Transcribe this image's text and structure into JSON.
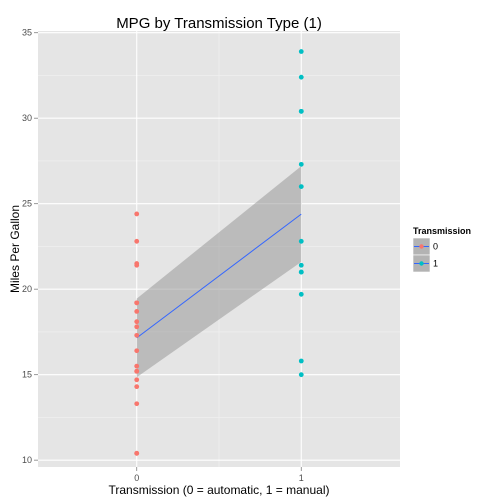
{
  "chart_data": {
    "type": "scatter",
    "title": "MPG by Transmission Type (1)",
    "xlabel": "Transmission (0 = automatic, 1 = manual)",
    "ylabel": "Miles Per Gallon",
    "xlim": [
      -0.6,
      1.6
    ],
    "ylim": [
      9.6,
      35.1
    ],
    "x_ticks": [
      0,
      1
    ],
    "y_ticks": [
      10,
      15,
      20,
      25,
      30,
      35
    ],
    "grid": true,
    "legend": {
      "title": "Transmission",
      "position": "right",
      "entries": [
        {
          "label": "0",
          "color": "#f8766d"
        },
        {
          "label": "1",
          "color": "#00bfc4"
        }
      ]
    },
    "series": [
      {
        "name": "0",
        "color": "#f8766d",
        "x": [
          0,
          0,
          0,
          0,
          0,
          0,
          0,
          0,
          0,
          0,
          0,
          0,
          0,
          0,
          0,
          0,
          0,
          0,
          0
        ],
        "y": [
          24.4,
          22.8,
          21.5,
          21.4,
          19.2,
          19.2,
          18.7,
          18.1,
          17.8,
          17.3,
          16.4,
          15.5,
          15.2,
          15.2,
          14.7,
          14.3,
          13.3,
          10.4,
          10.4
        ]
      },
      {
        "name": "1",
        "color": "#00bfc4",
        "x": [
          1,
          1,
          1,
          1,
          1,
          1,
          1,
          1,
          1,
          1,
          1,
          1,
          1
        ],
        "y": [
          33.9,
          32.4,
          30.4,
          30.4,
          27.3,
          26.0,
          22.8,
          21.4,
          21.0,
          21.0,
          19.7,
          15.8,
          15.0
        ]
      }
    ],
    "regression": {
      "color": "#3366ff",
      "x": [
        0,
        1
      ],
      "y": [
        17.15,
        24.39
      ],
      "ci_lower": [
        14.85,
        21.6
      ],
      "ci_upper": [
        19.45,
        27.2
      ],
      "band_color": "#999999"
    }
  }
}
